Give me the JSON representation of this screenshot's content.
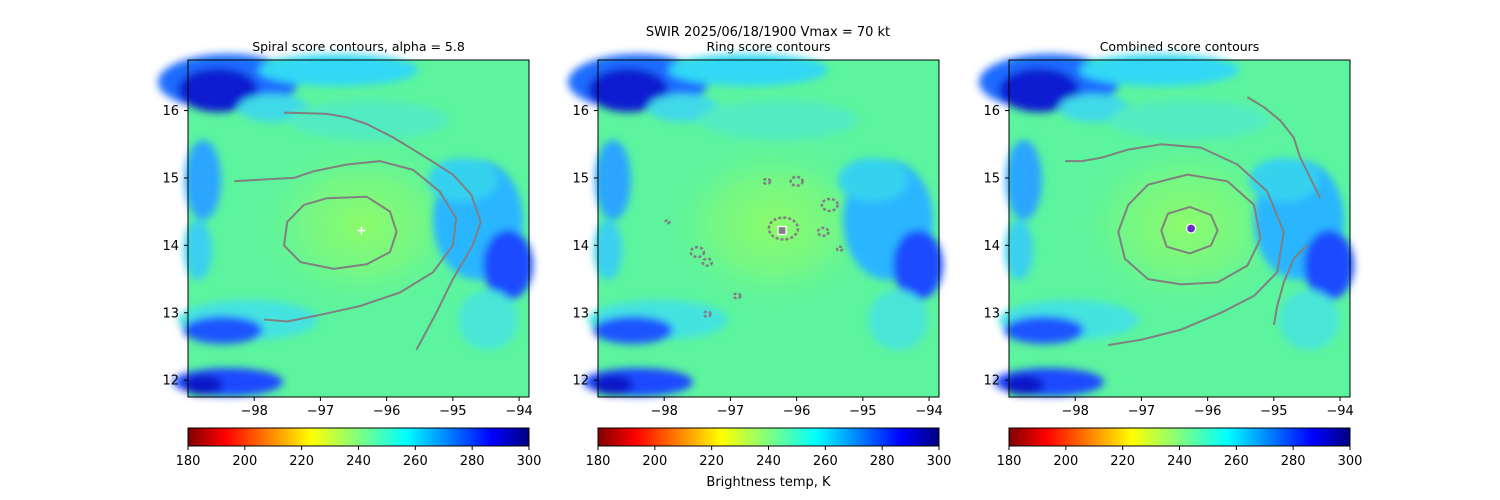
{
  "suptitle": "SWIR  2025/06/18/1900    Vmax = 70 kt",
  "colorbar_label": "Brightness temp, K",
  "colors": {
    "contour": "#808080",
    "cloud_field": "#5cf79a",
    "center_marker": "#ffffff",
    "combined_marker": "#6a2cc9"
  },
  "chart_data": [
    {
      "type": "heatmap",
      "title": "Spiral score contours, alpha =  5.8",
      "xlim": [
        -99.0,
        -93.85
      ],
      "ylim": [
        11.75,
        16.75
      ],
      "x_ticks": [
        -98,
        -97,
        -96,
        -95,
        -94
      ],
      "y_ticks": [
        12,
        13,
        14,
        15,
        16
      ],
      "center": {
        "lon": -96.38,
        "lat": 14.22,
        "marker": "plus"
      },
      "contours": [
        [
          [
            -96.9,
            14.7
          ],
          [
            -96.3,
            14.72
          ],
          [
            -95.95,
            14.5
          ],
          [
            -95.85,
            14.2
          ],
          [
            -95.95,
            13.9
          ],
          [
            -96.3,
            13.72
          ],
          [
            -96.8,
            13.65
          ],
          [
            -97.3,
            13.75
          ],
          [
            -97.55,
            14.0
          ],
          [
            -97.5,
            14.35
          ],
          [
            -97.25,
            14.6
          ],
          [
            -96.9,
            14.7
          ]
        ],
        [
          [
            -98.3,
            14.95
          ],
          [
            -97.8,
            14.98
          ],
          [
            -97.4,
            15.0
          ],
          [
            -97.1,
            15.1
          ],
          [
            -96.6,
            15.2
          ],
          [
            -96.1,
            15.25
          ],
          [
            -95.6,
            15.12
          ],
          [
            -95.2,
            14.8
          ],
          [
            -94.95,
            14.4
          ],
          [
            -95.0,
            14.0
          ],
          [
            -95.3,
            13.6
          ],
          [
            -95.8,
            13.3
          ],
          [
            -96.4,
            13.1
          ],
          [
            -97.0,
            12.97
          ],
          [
            -97.5,
            12.87
          ],
          [
            -97.85,
            12.9
          ]
        ],
        [
          [
            -97.55,
            15.97
          ],
          [
            -97.2,
            15.96
          ],
          [
            -96.9,
            15.95
          ],
          [
            -96.6,
            15.9
          ],
          [
            -96.3,
            15.8
          ],
          [
            -95.9,
            15.6
          ],
          [
            -95.4,
            15.3
          ],
          [
            -95.0,
            15.05
          ],
          [
            -94.72,
            14.75
          ],
          [
            -94.58,
            14.35
          ],
          [
            -94.7,
            14.0
          ],
          [
            -95.0,
            13.5
          ],
          [
            -95.25,
            13.0
          ],
          [
            -95.55,
            12.45
          ]
        ]
      ]
    },
    {
      "type": "heatmap",
      "title": "Ring score contours",
      "xlim": [
        -99.0,
        -93.85
      ],
      "ylim": [
        11.75,
        16.75
      ],
      "x_ticks": [
        -98,
        -97,
        -96,
        -95,
        -94
      ],
      "y_ticks": [
        12,
        13,
        14,
        15,
        16
      ],
      "center": {
        "lon": -96.22,
        "lat": 14.22,
        "marker": "square"
      },
      "blobs": [
        {
          "lon": -96.2,
          "lat": 14.25,
          "r": 0.22
        },
        {
          "lon": -95.5,
          "lat": 14.6,
          "r": 0.12
        },
        {
          "lon": -95.6,
          "lat": 14.2,
          "r": 0.08
        },
        {
          "lon": -96.0,
          "lat": 14.95,
          "r": 0.09
        },
        {
          "lon": -96.45,
          "lat": 14.95,
          "r": 0.05
        },
        {
          "lon": -97.5,
          "lat": 13.9,
          "r": 0.1
        },
        {
          "lon": -97.35,
          "lat": 13.75,
          "r": 0.07
        },
        {
          "lon": -96.9,
          "lat": 13.25,
          "r": 0.05
        },
        {
          "lon": -97.35,
          "lat": 12.98,
          "r": 0.05
        },
        {
          "lon": -95.35,
          "lat": 13.95,
          "r": 0.04
        },
        {
          "lon": -97.95,
          "lat": 14.35,
          "r": 0.03
        }
      ]
    },
    {
      "type": "heatmap",
      "title": "Combined score contours",
      "xlim": [
        -99.0,
        -93.85
      ],
      "ylim": [
        11.75,
        16.75
      ],
      "x_ticks": [
        -98,
        -97,
        -96,
        -95,
        -94
      ],
      "y_ticks": [
        12,
        13,
        14,
        15,
        16
      ],
      "center": {
        "lon": -96.25,
        "lat": 14.25,
        "marker": "circle"
      },
      "contours": [
        [
          [
            -96.27,
            14.57
          ],
          [
            -95.95,
            14.45
          ],
          [
            -95.85,
            14.22
          ],
          [
            -95.95,
            14.0
          ],
          [
            -96.27,
            13.88
          ],
          [
            -96.62,
            13.98
          ],
          [
            -96.7,
            14.22
          ],
          [
            -96.6,
            14.47
          ],
          [
            -96.27,
            14.57
          ]
        ],
        [
          [
            -96.3,
            15.05
          ],
          [
            -95.7,
            14.95
          ],
          [
            -95.3,
            14.6
          ],
          [
            -95.2,
            14.1
          ],
          [
            -95.4,
            13.7
          ],
          [
            -95.85,
            13.45
          ],
          [
            -96.4,
            13.42
          ],
          [
            -96.9,
            13.5
          ],
          [
            -97.25,
            13.8
          ],
          [
            -97.35,
            14.2
          ],
          [
            -97.2,
            14.6
          ],
          [
            -96.9,
            14.9
          ],
          [
            -96.5,
            15.0
          ],
          [
            -96.3,
            15.05
          ]
        ],
        [
          [
            -98.15,
            15.25
          ],
          [
            -97.9,
            15.25
          ],
          [
            -97.6,
            15.3
          ],
          [
            -97.2,
            15.42
          ],
          [
            -96.7,
            15.5
          ],
          [
            -96.1,
            15.45
          ],
          [
            -95.55,
            15.2
          ],
          [
            -95.1,
            14.8
          ],
          [
            -94.85,
            14.2
          ],
          [
            -94.95,
            13.6
          ],
          [
            -95.3,
            13.25
          ],
          [
            -95.8,
            13.0
          ],
          [
            -96.4,
            12.75
          ],
          [
            -97.0,
            12.6
          ],
          [
            -97.5,
            12.52
          ]
        ],
        [
          [
            -95.4,
            16.2
          ],
          [
            -95.15,
            16.05
          ],
          [
            -94.9,
            15.85
          ],
          [
            -94.7,
            15.6
          ],
          [
            -94.6,
            15.3
          ],
          [
            -94.45,
            15.0
          ],
          [
            -94.3,
            14.7
          ]
        ],
        [
          [
            -94.5,
            14.0
          ],
          [
            -94.7,
            13.8
          ],
          [
            -94.85,
            13.45
          ],
          [
            -94.95,
            13.1
          ],
          [
            -95.0,
            12.82
          ]
        ]
      ]
    }
  ],
  "colorbar": {
    "min": 180,
    "max": 300,
    "ticks": [
      180,
      200,
      220,
      240,
      260,
      280,
      300
    ],
    "colormap": "jet_r"
  }
}
